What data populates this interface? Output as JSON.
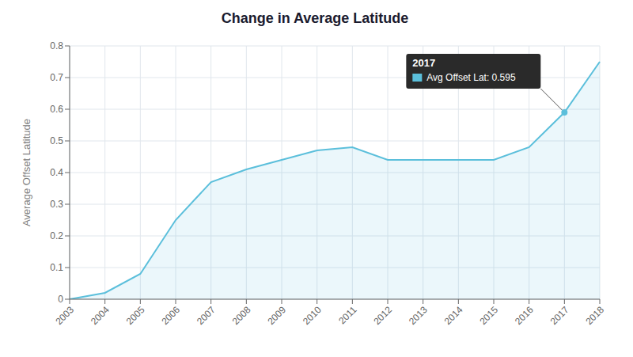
{
  "chart_data": {
    "type": "area",
    "title": "Change in Average Latitude",
    "ylabel": "Average Offset Latitude",
    "categories": [
      "2003",
      "2004",
      "2005",
      "2006",
      "2007",
      "2008",
      "2009",
      "2010",
      "2011",
      "2012",
      "2013",
      "2014",
      "2015",
      "2016",
      "2017",
      "2018"
    ],
    "values": [
      0.0,
      0.02,
      0.08,
      0.25,
      0.37,
      0.41,
      0.44,
      0.47,
      0.48,
      0.44,
      0.44,
      0.44,
      0.44,
      0.48,
      0.59,
      0.75
    ],
    "color": "#5bbfdb",
    "ylim": [
      0,
      0.8
    ],
    "yticks": [
      0,
      0.1,
      0.2,
      0.3,
      0.4,
      0.5,
      0.6,
      0.7,
      0.8
    ],
    "grid": true,
    "annotations": [
      {
        "x": "2017",
        "y": 0.59,
        "title": "2017",
        "text": "Avg Offset Lat: 0.595"
      }
    ]
  }
}
